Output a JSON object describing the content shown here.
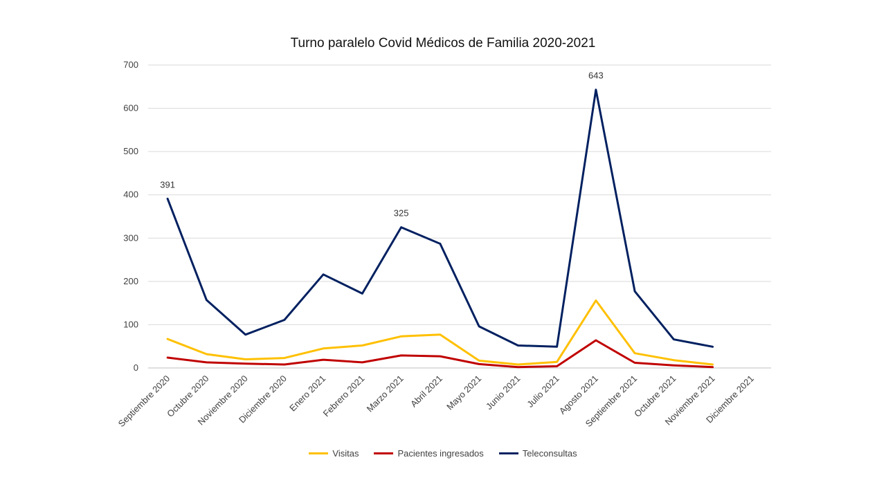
{
  "chart_data": {
    "type": "line",
    "title": "Turno paralelo Covid Médicos de Familia 2020-2021",
    "xlabel": "",
    "ylabel": "",
    "ylim": [
      0,
      700
    ],
    "yticks": [
      0,
      100,
      200,
      300,
      400,
      500,
      600,
      700
    ],
    "grid": true,
    "legend": "bottom",
    "categories": [
      "Septiembre 2020",
      "Octubre 2020",
      "Noviembre 2020",
      "Diciembre 2020",
      "Enero 2021",
      "Febrero 2021",
      "Marzo 2021",
      "Abril 2021",
      "Mayo 2021",
      "Junio 2021",
      "Julio 2021",
      "Agosto 2021",
      "Septiembre 2021",
      "Octubre  2021",
      "Noviembre 2021",
      "Diciembre 2021"
    ],
    "series": [
      {
        "name": "Visitas",
        "color": "#FFC000",
        "values": [
          67,
          32,
          20,
          23,
          45,
          52,
          73,
          77,
          17,
          8,
          14,
          156,
          34,
          18,
          8,
          null
        ]
      },
      {
        "name": "Pacientes ingresados",
        "color": "#C00000",
        "values": [
          24,
          13,
          10,
          8,
          19,
          13,
          29,
          27,
          9,
          2,
          4,
          64,
          12,
          6,
          2,
          null
        ]
      },
      {
        "name": "Teleconsultas",
        "color": "#002060",
        "values": [
          391,
          157,
          77,
          111,
          216,
          172,
          325,
          287,
          96,
          52,
          49,
          643,
          177,
          66,
          49,
          null
        ]
      }
    ],
    "annotations": [
      {
        "series": "Teleconsultas",
        "index": 0,
        "text": "391"
      },
      {
        "series": "Teleconsultas",
        "index": 6,
        "text": "325"
      },
      {
        "series": "Teleconsultas",
        "index": 11,
        "text": "643"
      }
    ]
  }
}
